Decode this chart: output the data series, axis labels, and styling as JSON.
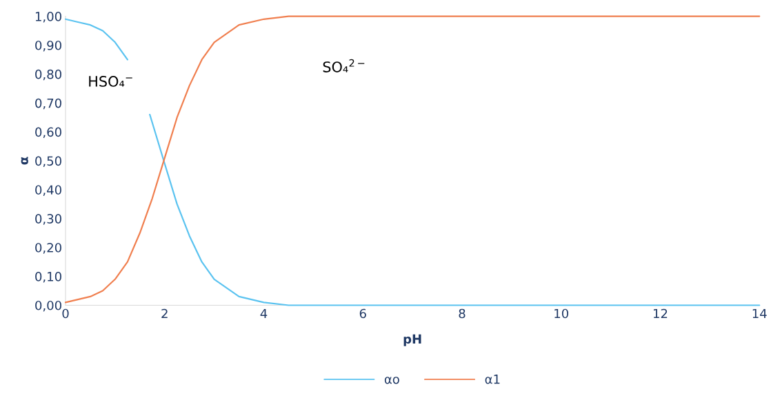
{
  "chart_data": {
    "type": "line",
    "xlabel": "pH",
    "ylabel": "α",
    "xlim": [
      0,
      14
    ],
    "xticks": [
      0,
      2,
      4,
      6,
      8,
      10,
      12,
      14
    ],
    "ylim": [
      0,
      1
    ],
    "yticks": [
      {
        "value": 0,
        "label": "0,00"
      },
      {
        "value": 0.1,
        "label": "0,10"
      },
      {
        "value": 0.2,
        "label": "0,20"
      },
      {
        "value": 0.3,
        "label": "0,30"
      },
      {
        "value": 0.4,
        "label": "0,40"
      },
      {
        "value": 0.5,
        "label": "0,50"
      },
      {
        "value": 0.6,
        "label": "0,60"
      },
      {
        "value": 0.7,
        "label": "0,70"
      },
      {
        "value": 0.8,
        "label": "0,80"
      },
      {
        "value": 0.9,
        "label": "0,90"
      },
      {
        "value": 1,
        "label": "1,00"
      }
    ],
    "grid": false,
    "legend": "bottom",
    "marker": "none",
    "line_style": "solid",
    "series": [
      {
        "name": "αo",
        "color": "#5bc3f0",
        "x": [
          0,
          0.25,
          0.5,
          0.75,
          1,
          1.25,
          1.45,
          1.7,
          2,
          2.25,
          2.5,
          2.75,
          3,
          3.5,
          4,
          4.5,
          5,
          6,
          7,
          14
        ],
        "values": [
          0.99,
          0.98,
          0.97,
          0.95,
          0.91,
          0.85,
          null,
          0.66,
          0.49,
          0.35,
          0.24,
          0.15,
          0.09,
          0.03,
          0.01,
          0.0,
          0.0,
          0.0,
          0.0,
          0.0
        ]
      },
      {
        "name": "α1",
        "color": "#f07f4f",
        "x": [
          0,
          0.25,
          0.5,
          0.75,
          1,
          1.25,
          1.5,
          1.75,
          2,
          2.25,
          2.5,
          2.75,
          3,
          3.5,
          4,
          4.5,
          5,
          6,
          14
        ],
        "values": [
          0.01,
          0.02,
          0.03,
          0.05,
          0.09,
          0.15,
          0.25,
          0.37,
          0.51,
          0.65,
          0.76,
          0.85,
          0.91,
          0.97,
          0.99,
          1.0,
          1.0,
          1.0,
          1.0
        ]
      }
    ],
    "annotations": [
      "HSO₄$^{−}$",
      "SO₄$^{2−}$"
    ]
  }
}
